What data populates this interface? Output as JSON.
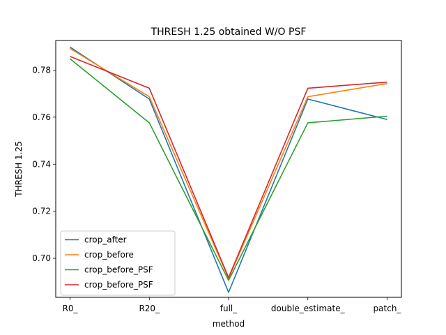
{
  "chart_data": {
    "type": "line",
    "title": "THRESH 1.25 obtained W/O PSF",
    "xlabel": "method",
    "ylabel": "THRESH 1.25",
    "categories": [
      "R0_",
      "R20_",
      "full_",
      "double_estimate_",
      "patch_"
    ],
    "ylim": [
      0.6834,
      0.7926
    ],
    "yticks": [
      0.7,
      0.72,
      0.74,
      0.76,
      0.78
    ],
    "ytick_labels": [
      "0.70",
      "0.72",
      "0.74",
      "0.76",
      "0.78"
    ],
    "grid": false,
    "legend_position": "lower-left",
    "series": [
      {
        "name": "crop_after",
        "color": "#1f77b4",
        "values": [
          0.7898,
          0.7677,
          0.6855,
          0.7677,
          0.759
        ]
      },
      {
        "name": "crop_before",
        "color": "#ff7f0e",
        "values": [
          0.7892,
          0.7687,
          0.6915,
          0.7687,
          0.7743
        ]
      },
      {
        "name": "crop_before_PSF",
        "color": "#2ca02c",
        "values": [
          0.7848,
          0.7576,
          0.6906,
          0.7576,
          0.7604
        ]
      },
      {
        "name": "crop_before_PSF",
        "color": "#d62728",
        "values": [
          0.7858,
          0.7723,
          0.6918,
          0.7723,
          0.7749
        ]
      }
    ]
  }
}
